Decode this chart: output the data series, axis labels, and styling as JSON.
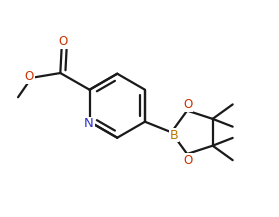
{
  "bg_color": "#ffffff",
  "line_color": "#1a1a1a",
  "atom_color_N": "#3333cc",
  "atom_color_O": "#cc3300",
  "atom_color_B": "#b87800",
  "line_width": 1.6,
  "font_size_atom": 8.5,
  "fig_width": 2.79,
  "fig_height": 2.17,
  "dpi": 100,
  "xlim": [
    0,
    10
  ],
  "ylim": [
    0,
    7.8
  ]
}
